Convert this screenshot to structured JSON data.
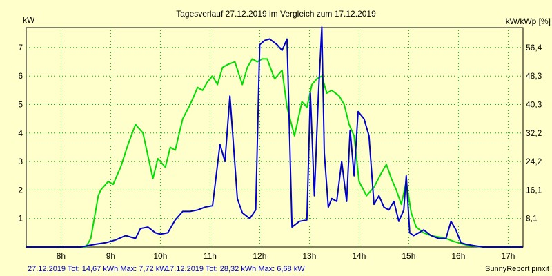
{
  "chart_data": {
    "type": "line",
    "title": "Tagesverlauf 27.12.2019 im Vergleich zum 17.12.2019",
    "ylabel_left": "kW",
    "ylabel_right": "kW/kWp [%]",
    "xlim": [
      7.3,
      17.3
    ],
    "ylim": [
      0,
      7.7
    ],
    "x_ticks": [
      8,
      9,
      10,
      11,
      12,
      13,
      14,
      15,
      16,
      17
    ],
    "x_tick_labels": [
      "8h",
      "9h",
      "10h",
      "11h",
      "12h",
      "13h",
      "14h",
      "15h",
      "16h",
      "17h"
    ],
    "y_ticks": [
      1,
      2,
      3,
      4,
      5,
      6,
      7
    ],
    "y_tick_labels": [
      "1",
      "2",
      "3",
      "4",
      "5",
      "6",
      "7"
    ],
    "y2_ticks": [
      1,
      2,
      3,
      4,
      5,
      6,
      7
    ],
    "y2_tick_labels": [
      "8,1",
      "16,1",
      "24,2",
      "32,2",
      "40,3",
      "48,3",
      "56,4"
    ],
    "grid": true,
    "series": [
      {
        "name": "27.12.2019 Tot: 14,67 kWh Max: 7,72 kW",
        "color": "#0000cc",
        "x": [
          7.3,
          8.4,
          8.55,
          8.7,
          8.9,
          9.1,
          9.3,
          9.5,
          9.6,
          9.75,
          9.9,
          10.0,
          10.15,
          10.3,
          10.45,
          10.6,
          10.75,
          10.9,
          11.05,
          11.2,
          11.3,
          11.4,
          11.55,
          11.65,
          11.8,
          11.92,
          12.0,
          12.1,
          12.2,
          12.35,
          12.45,
          12.55,
          12.65,
          12.8,
          12.95,
          13.02,
          13.1,
          13.18,
          13.25,
          13.3,
          13.38,
          13.45,
          13.55,
          13.65,
          13.75,
          13.82,
          13.9,
          13.98,
          14.1,
          14.2,
          14.3,
          14.4,
          14.5,
          14.6,
          14.7,
          14.8,
          14.9,
          14.95,
          15.02,
          15.1,
          15.2,
          15.3,
          15.45,
          15.6,
          15.75,
          15.85,
          15.95,
          16.05,
          16.15,
          16.3,
          16.5,
          17.0,
          17.3
        ],
        "y": [
          0,
          0,
          0.05,
          0.1,
          0.15,
          0.25,
          0.4,
          0.3,
          0.65,
          0.7,
          0.5,
          0.45,
          0.5,
          0.95,
          1.25,
          1.25,
          1.3,
          1.4,
          1.45,
          3.6,
          3.0,
          5.3,
          1.7,
          1.2,
          1.0,
          1.3,
          7.1,
          7.25,
          7.3,
          7.1,
          6.9,
          7.3,
          0.7,
          0.9,
          0.95,
          5.4,
          1.8,
          5.3,
          7.72,
          3.3,
          1.4,
          1.7,
          1.6,
          3.0,
          1.6,
          4.1,
          2.5,
          4.75,
          4.5,
          3.9,
          1.5,
          1.8,
          1.4,
          1.3,
          1.6,
          0.9,
          1.3,
          2.5,
          0.5,
          0.4,
          0.5,
          0.6,
          0.4,
          0.3,
          0.3,
          0.9,
          0.6,
          0.15,
          0.1,
          0.05,
          0,
          0,
          0
        ]
      },
      {
        "name": "17.12.2019 Tot: 28,32 kWh Max: 6,68 kW",
        "color": "#00dd00",
        "x": [
          7.3,
          8.5,
          8.6,
          8.75,
          8.8,
          8.95,
          9.05,
          9.2,
          9.35,
          9.5,
          9.65,
          9.85,
          9.95,
          10.1,
          10.2,
          10.3,
          10.45,
          10.6,
          10.75,
          10.85,
          10.95,
          11.05,
          11.15,
          11.25,
          11.35,
          11.5,
          11.65,
          11.75,
          11.85,
          11.95,
          12.05,
          12.15,
          12.3,
          12.45,
          12.55,
          12.7,
          12.85,
          12.95,
          13.05,
          13.15,
          13.25,
          13.35,
          13.45,
          13.6,
          13.7,
          13.8,
          13.9,
          14.0,
          14.15,
          14.3,
          14.45,
          14.55,
          14.65,
          14.75,
          14.85,
          14.95,
          15.05,
          15.15,
          15.3,
          15.45,
          15.6,
          15.75,
          15.9,
          16.0,
          16.2,
          16.5,
          17.0,
          17.3
        ],
        "y": [
          0,
          0,
          0.3,
          1.8,
          2.0,
          2.3,
          2.2,
          2.8,
          3.6,
          4.3,
          4.0,
          2.4,
          3.1,
          2.8,
          3.5,
          3.4,
          4.5,
          5.0,
          5.6,
          5.5,
          5.8,
          6.0,
          5.7,
          6.3,
          6.4,
          6.5,
          5.7,
          6.3,
          6.6,
          6.5,
          6.6,
          6.6,
          5.9,
          6.2,
          4.9,
          3.9,
          5.1,
          4.9,
          5.7,
          5.9,
          6.0,
          5.4,
          5.5,
          5.3,
          5.0,
          4.3,
          3.9,
          2.3,
          1.8,
          2.1,
          2.6,
          2.9,
          2.4,
          2.0,
          1.5,
          2.3,
          1.2,
          0.7,
          0.5,
          0.4,
          0.35,
          0.3,
          0.2,
          0.15,
          0.05,
          0,
          0,
          0
        ]
      }
    ]
  },
  "footer": {
    "series1_label": "27.12.2019 Tot: 14,67 kWh Max: 7,72 kW",
    "series2_label": "17.12.2019 Tot: 28,32 kWh Max: 6,68 kW",
    "credit": "SunnyReport pinxit"
  }
}
